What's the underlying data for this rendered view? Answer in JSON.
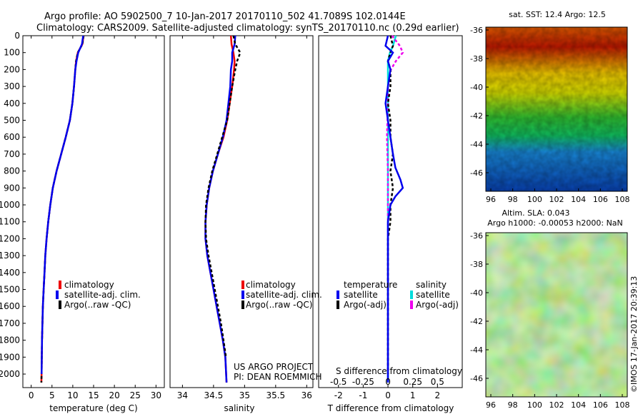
{
  "header": {
    "line1": "Argo profile: AO 5902500_7 10-Jan-2017 20170110_502 41.7089S 102.0144E",
    "line2": "Climatology: CARS2009. Satellite-adjusted climatology: synTS_20170110.nc (0.29d earlier)"
  },
  "colors": {
    "climatology": "#ee0000",
    "satellite": "#0000ee",
    "argo": "#000000",
    "sal_satellite": "#00dddd",
    "sal_argo": "#ee00ee"
  },
  "project": {
    "line1": "US ARGO PROJECT",
    "line2": "PI: DEAN ROEMMICH"
  },
  "side_label": "©IMOS 17-Jan-2017 20:39:13",
  "chart_data": [
    {
      "type": "line",
      "id": "temperature",
      "xlabel": "temperature (deg C)",
      "xlim": [
        -2,
        32
      ],
      "ylim": [
        2080,
        0
      ],
      "xticks": [
        "0",
        "5",
        "10",
        "15",
        "20",
        "25",
        "30"
      ],
      "yticks": [
        "0",
        "100",
        "200",
        "300",
        "400",
        "500",
        "600",
        "700",
        "800",
        "900",
        "1000",
        "1100",
        "1200",
        "1300",
        "1400",
        "1500",
        "1600",
        "1700",
        "1800",
        "1900",
        "2000"
      ],
      "legend": [
        "climatology",
        "satellite-adj. clim.",
        "Argo(..raw -QC)"
      ],
      "series": [
        {
          "name": "climatology",
          "x": [
            12.6,
            12.3,
            11.2,
            10.8,
            10.6,
            10.3,
            9.9,
            9.3,
            8.3,
            7.2,
            6.1,
            5.2,
            4.6,
            4.1,
            3.7,
            3.4,
            3.2,
            3.0,
            2.8,
            2.6,
            2.5,
            2.45
          ],
          "y": [
            0,
            50,
            100,
            150,
            200,
            300,
            400,
            500,
            600,
            700,
            800,
            900,
            1000,
            1100,
            1200,
            1300,
            1400,
            1500,
            1600,
            1800,
            2000,
            2050
          ]
        },
        {
          "name": "satellite-adj. clim.",
          "x": [
            12.6,
            12.3,
            11.2,
            10.8,
            10.6,
            10.3,
            9.9,
            9.3,
            8.3,
            7.2,
            6.1,
            5.2,
            4.6,
            4.1,
            3.7,
            3.4,
            3.2,
            3.0,
            2.8,
            2.6,
            2.5,
            2.45
          ],
          "y": [
            0,
            50,
            100,
            150,
            200,
            300,
            400,
            500,
            600,
            700,
            800,
            900,
            1000,
            1100,
            1200,
            1300,
            1400,
            1500,
            1600,
            1800,
            2000,
            2050
          ]
        },
        {
          "name": "Argo(..raw -QC)",
          "x": [
            12.5,
            12.2,
            11.3,
            10.9,
            10.6,
            10.3,
            9.9,
            9.3,
            8.3,
            7.2,
            6.1,
            5.2,
            4.6,
            4.1,
            3.7,
            3.4,
            3.2,
            3.0,
            2.8,
            2.6,
            2.5
          ],
          "y": [
            0,
            50,
            100,
            150,
            200,
            300,
            400,
            500,
            600,
            700,
            800,
            900,
            1000,
            1100,
            1200,
            1300,
            1400,
            1500,
            1600,
            1800,
            2000
          ]
        }
      ]
    },
    {
      "type": "line",
      "id": "salinity",
      "xlabel": "salinity",
      "xlim": [
        33.8,
        36.1
      ],
      "ylim": [
        2080,
        0
      ],
      "xticks": [
        "34",
        "34.5",
        "35",
        "35.5",
        "36"
      ],
      "legend": [
        "climatology",
        "satellite-adj. clim.",
        "Argo(..raw -QC)"
      ],
      "series": [
        {
          "name": "climatology",
          "x": [
            34.78,
            34.79,
            34.82,
            34.84,
            34.83,
            34.8,
            34.76,
            34.72,
            34.66,
            34.57,
            34.49,
            34.43,
            34.39,
            34.37,
            34.37,
            34.4,
            34.45,
            34.5,
            34.55,
            34.6,
            34.65,
            34.69,
            34.71
          ],
          "y": [
            0,
            50,
            100,
            150,
            200,
            300,
            400,
            500,
            600,
            700,
            800,
            900,
            1000,
            1100,
            1200,
            1300,
            1400,
            1500,
            1600,
            1700,
            1800,
            1900,
            2050
          ]
        },
        {
          "name": "satellite-adj. clim.",
          "x": [
            34.85,
            34.84,
            34.8,
            34.8,
            34.78,
            34.77,
            34.74,
            34.71,
            34.65,
            34.57,
            34.49,
            34.43,
            34.39,
            34.37,
            34.37,
            34.4,
            34.45,
            34.5,
            34.55,
            34.6,
            34.65,
            34.69,
            34.71
          ],
          "y": [
            0,
            50,
            100,
            150,
            200,
            300,
            400,
            500,
            600,
            700,
            800,
            900,
            1000,
            1100,
            1200,
            1300,
            1400,
            1500,
            1600,
            1700,
            1800,
            1900,
            2050
          ]
        },
        {
          "name": "Argo(..raw -QC)",
          "x": [
            34.82,
            34.85,
            34.93,
            34.88,
            34.85,
            34.8,
            34.76,
            34.72,
            34.64,
            34.56,
            34.48,
            34.42,
            34.38,
            34.37,
            34.38,
            34.42,
            34.47,
            34.52,
            34.57,
            34.62,
            34.66,
            34.7
          ],
          "y": [
            0,
            50,
            100,
            150,
            200,
            300,
            400,
            500,
            600,
            700,
            800,
            900,
            1000,
            1100,
            1200,
            1300,
            1400,
            1500,
            1600,
            1700,
            1800,
            1900
          ]
        }
      ]
    },
    {
      "type": "line",
      "id": "difference",
      "xlabel": "T difference from climatology",
      "x2label": "S difference from climatology",
      "xlim": [
        -2.8,
        3.0
      ],
      "ylim": [
        2080,
        0
      ],
      "xticks": [
        "-2",
        "-1",
        "0",
        "1",
        "2"
      ],
      "x2ticks": [
        "-0.5",
        "-0.25",
        "0",
        "0.25",
        "0.5"
      ],
      "legend_title_t": "temperature",
      "legend_title_s": "salinity",
      "legend_t": [
        "satellite",
        "Argo(-adj)"
      ],
      "legend_s": [
        "satellite",
        "Argo(-adj)"
      ],
      "series": [
        {
          "name": "T satellite",
          "x": [
            0.0,
            -0.1,
            0.2,
            0.0,
            0.1,
            0.0,
            -0.1,
            0.0,
            0.1,
            0.2,
            0.3,
            0.5,
            0.6,
            0.3,
            0.1,
            0.0,
            0.0,
            0.0,
            0.0,
            0.0,
            0.0,
            0.0,
            0.0
          ],
          "y": [
            0,
            60,
            100,
            150,
            200,
            300,
            400,
            500,
            600,
            700,
            780,
            850,
            900,
            950,
            1000,
            1100,
            1200,
            1300,
            1400,
            1600,
            1800,
            2000,
            2050
          ]
        },
        {
          "name": "T Argo(-adj)",
          "x": [
            0.1,
            0.2,
            0.1,
            0.0,
            0.1,
            0.1,
            0.0,
            0.1,
            0.1,
            0.2,
            0.1,
            0.2,
            0.1,
            0.1,
            0.0,
            0.0,
            0.0,
            0.0,
            0.0
          ],
          "y": [
            0,
            60,
            100,
            150,
            200,
            300,
            400,
            500,
            600,
            700,
            800,
            900,
            1000,
            1100,
            1200,
            1300,
            1500,
            1700,
            2000
          ]
        },
        {
          "name": "S satellite",
          "x": [
            0.08,
            0.05,
            0.02,
            0.0,
            0.0,
            0.0,
            0.0,
            0.0,
            0.0,
            0.0,
            0.0,
            0.0,
            0.0,
            0.0
          ],
          "y": [
            0,
            60,
            100,
            150,
            200,
            300,
            400,
            600,
            800,
            1000,
            1200,
            1500,
            1800,
            2050
          ]
        },
        {
          "name": "S Argo(-adj)",
          "x": [
            0.04,
            0.12,
            0.15,
            0.08,
            0.03,
            0.0,
            0.0,
            -0.01,
            0.0,
            0.0,
            0.0,
            0.0,
            0.0
          ],
          "y": [
            0,
            60,
            100,
            150,
            200,
            300,
            400,
            600,
            800,
            1000,
            1300,
            1600,
            2000
          ]
        }
      ]
    },
    {
      "type": "heatmap",
      "id": "sst_map",
      "title": "sat. SST: 12.4 Argo: 12.5",
      "xticks": [
        "96",
        "98",
        "100",
        "102",
        "104",
        "106",
        "108"
      ],
      "yticks": [
        "-36",
        "-38",
        "-40",
        "-42",
        "-44",
        "-46"
      ]
    },
    {
      "type": "heatmap",
      "id": "sla_map",
      "title1": "Altim. SLA: 0.043",
      "title2": "Argo h1000: -0.00053 h2000: NaN",
      "xticks": [
        "96",
        "98",
        "100",
        "102",
        "104",
        "106",
        "108"
      ],
      "yticks": [
        "-36",
        "-38",
        "-40",
        "-42",
        "-44",
        "-46"
      ]
    }
  ]
}
